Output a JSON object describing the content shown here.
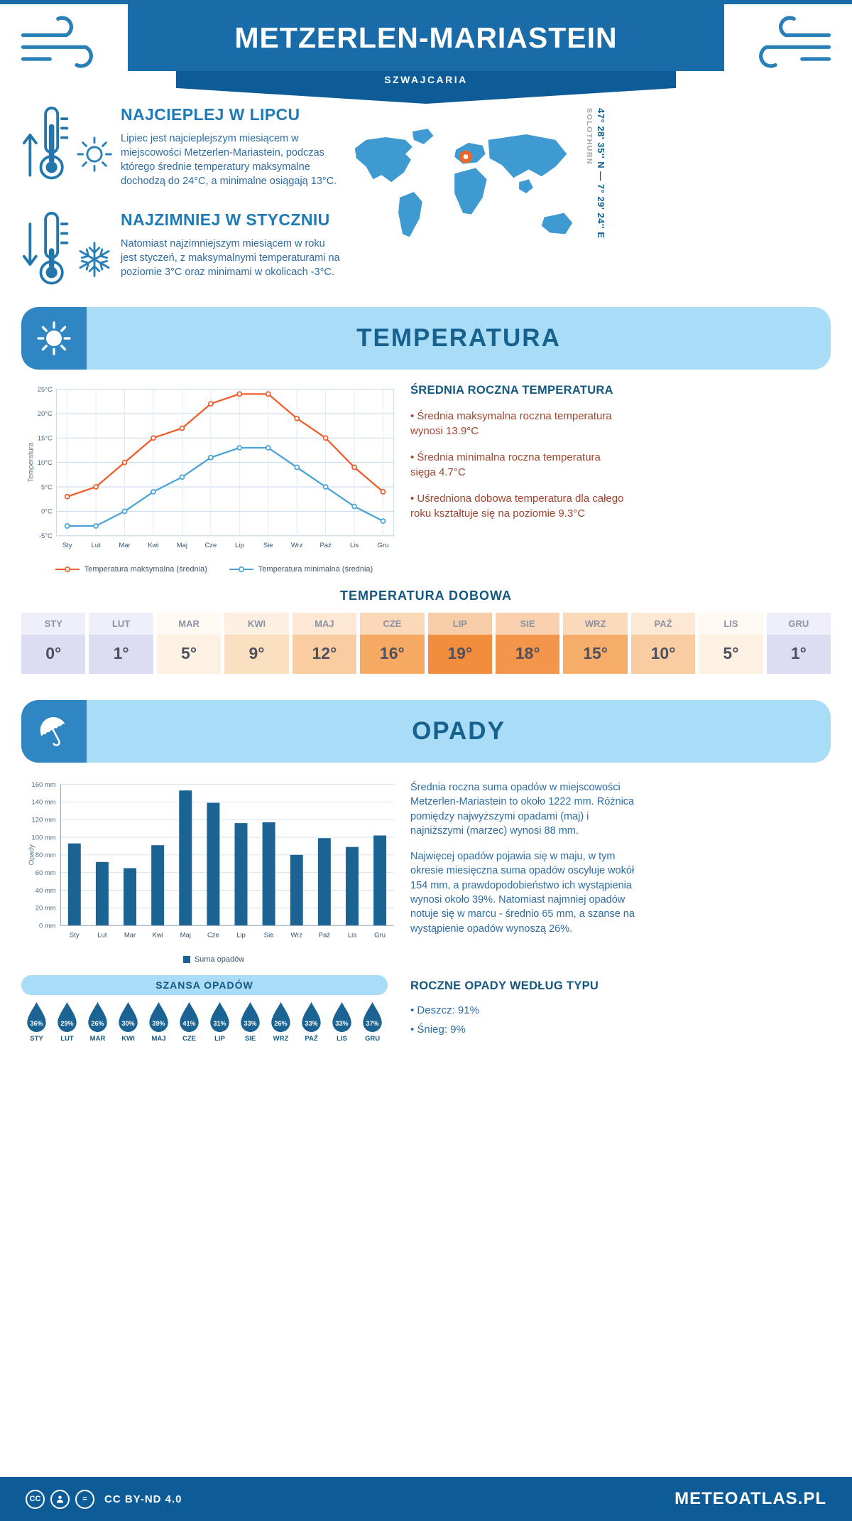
{
  "colors": {
    "primary_blue": "#1a6ca8",
    "deep_blue": "#0d5c98",
    "banner_light_blue": "#a9dcf7",
    "banner_icon_blue": "#2f86c2",
    "heading_blue": "#14577f",
    "text_blue": "#2e6da4",
    "max_line_orange": "#f15b2a",
    "min_line_blue": "#4aa3d8",
    "bar_blue": "#1b6393",
    "warm_bullet": "#a2442e",
    "marker_orange": "#f26522",
    "map_blue": "#3f9ad1"
  },
  "header": {
    "title": "METZERLEN-MARIASTEIN",
    "subtitle": "SZWAJCARIA"
  },
  "intro": {
    "warm": {
      "title": "NAJCIEPLEJ W LIPCU",
      "text": "Lipiec jest najcieplejszym miesiącem w miejscowości Metzerlen-Mariastein, podczas którego średnie temperatury maksymalne dochodzą do 24°C, a minimalne osiągają 13°C."
    },
    "cold": {
      "title": "NAJZIMNIEJ W STYCZNIU",
      "text": "Natomiast najzimniejszym miesiącem w roku jest styczeń, z maksymalnymi temperaturami na poziomie 3°C oraz minimami w okolicach -3°C."
    },
    "map": {
      "region": "SOLOTHURN",
      "coords": "47° 28' 35'' N — 7° 29' 24'' E"
    }
  },
  "temperature_section": {
    "banner": "TEMPERATURA",
    "summary_title": "ŚREDNIA ROCZNA TEMPERATURA",
    "bullets": [
      "Średnia maksymalna roczna temperatura wynosi 13.9°C",
      "Średnia minimalna roczna temperatura sięga 4.7°C",
      "Uśredniona dobowa temperatura dla całego roku kształtuje się na poziomie 9.3°C"
    ],
    "daily_title": "TEMPERATURA DOBOWA",
    "daily": [
      {
        "month": "STY",
        "value": "0°",
        "bg": "#dcdcf2"
      },
      {
        "month": "LUT",
        "value": "1°",
        "bg": "#dcdcf2"
      },
      {
        "month": "MAR",
        "value": "5°",
        "bg": "#fdf1e3"
      },
      {
        "month": "KWI",
        "value": "9°",
        "bg": "#fbdfc1"
      },
      {
        "month": "MAJ",
        "value": "12°",
        "bg": "#f9cda1"
      },
      {
        "month": "CZE",
        "value": "16°",
        "bg": "#f6a963"
      },
      {
        "month": "LIP",
        "value": "19°",
        "bg": "#f28d3d"
      },
      {
        "month": "SIE",
        "value": "18°",
        "bg": "#f3964b"
      },
      {
        "month": "WRZ",
        "value": "15°",
        "bg": "#f6ad6a"
      },
      {
        "month": "PAŹ",
        "value": "10°",
        "bg": "#f9cda1"
      },
      {
        "month": "LIS",
        "value": "5°",
        "bg": "#fdf1e3"
      },
      {
        "month": "GRU",
        "value": "1°",
        "bg": "#dcdcf2"
      }
    ]
  },
  "precipitation_section": {
    "banner": "OPADY",
    "paragraphs": [
      "Średnia roczna suma opadów w miejscowości Metzerlen-Mariastein to około 1222 mm. Różnica pomiędzy najwyższymi opadami (maj) i najniższymi (marzec) wynosi 88 mm.",
      "Najwięcej opadów pojawia się w maju, w tym okresie miesięczna suma opadów oscyluje wokół 154 mm, a prawdopodobieństwo ich wystąpienia wynosi około 39%. Natomiast najmniej opadów notuje się w marcu - średnio 65 mm, a szanse na wystąpienie opadów wynoszą 26%."
    ],
    "chance_title": "SZANSA OPADÓW",
    "chance": [
      {
        "month": "STY",
        "value": "36%"
      },
      {
        "month": "LUT",
        "value": "29%"
      },
      {
        "month": "MAR",
        "value": "26%"
      },
      {
        "month": "KWI",
        "value": "30%"
      },
      {
        "month": "MAJ",
        "value": "39%"
      },
      {
        "month": "CZE",
        "value": "41%"
      },
      {
        "month": "LIP",
        "value": "31%"
      },
      {
        "month": "SIE",
        "value": "33%"
      },
      {
        "month": "WRZ",
        "value": "26%"
      },
      {
        "month": "PAŹ",
        "value": "33%"
      },
      {
        "month": "LIS",
        "value": "33%"
      },
      {
        "month": "GRU",
        "value": "37%"
      }
    ],
    "type_title": "ROCZNE OPADY WEDŁUG TYPU",
    "type_bullets": [
      "Deszcz: 91%",
      "Śnieg: 9%"
    ]
  },
  "chart_data": [
    {
      "type": "line",
      "title": "Temperatura maksymalna i minimalna (średnia)",
      "categories": [
        "Sty",
        "Lut",
        "Mar",
        "Kwi",
        "Maj",
        "Cze",
        "Lip",
        "Sie",
        "Wrz",
        "Paź",
        "Lis",
        "Gru"
      ],
      "series": [
        {
          "name": "Temperatura maksymalna (średnia)",
          "color": "#f15b2a",
          "values": [
            3,
            5,
            10,
            15,
            17,
            22,
            24,
            24,
            19,
            15,
            9,
            4
          ]
        },
        {
          "name": "Temperatura minimalna (średnia)",
          "color": "#4aa3d8",
          "values": [
            -3,
            -3,
            0,
            4,
            7,
            11,
            13,
            13,
            9,
            5,
            1,
            -2
          ]
        }
      ],
      "xlabel": "",
      "ylabel": "Temperatura",
      "ylim": [
        -5,
        25
      ],
      "ytick_step": 5,
      "ytick_suffix": "°C",
      "grid": true,
      "legend_position": "bottom"
    },
    {
      "type": "bar",
      "title": "Suma opadów",
      "categories": [
        "Sty",
        "Lut",
        "Mar",
        "Kwi",
        "Maj",
        "Cze",
        "Lip",
        "Sie",
        "Wrz",
        "Paź",
        "Lis",
        "Gru"
      ],
      "series": [
        {
          "name": "Suma opadów",
          "color": "#1b6393",
          "values": [
            93,
            72,
            65,
            91,
            153,
            139,
            116,
            117,
            80,
            99,
            89,
            102
          ]
        }
      ],
      "xlabel": "",
      "ylabel": "Opady",
      "ylim": [
        0,
        160
      ],
      "ytick_step": 20,
      "ytick_suffix": " mm",
      "grid": true,
      "legend_position": "bottom"
    }
  ],
  "footer": {
    "license": "CC BY-ND 4.0",
    "brand": "METEOATLAS.PL"
  }
}
